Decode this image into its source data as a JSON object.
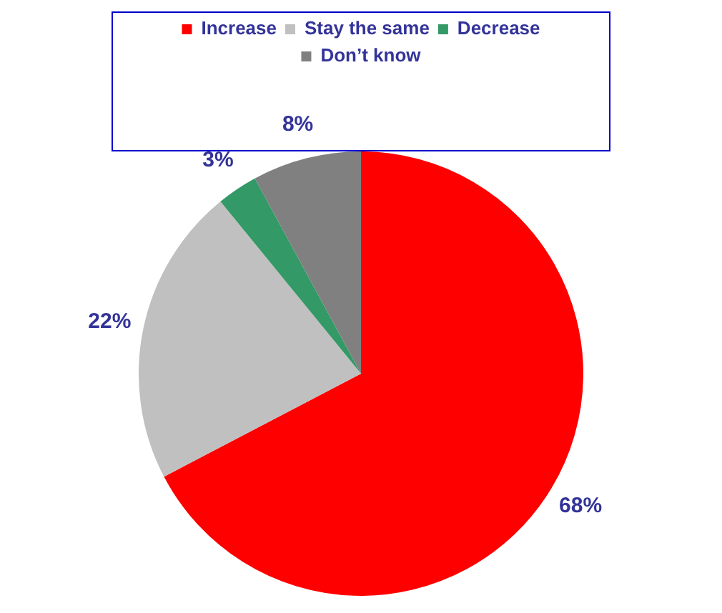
{
  "chart_data": {
    "type": "pie",
    "categories": [
      "Increase",
      "Stay the same",
      "Decrease",
      "Don’t know"
    ],
    "values": [
      68,
      22,
      3,
      8
    ],
    "colors": [
      "#ff0000",
      "#c0c0c0",
      "#339966",
      "#808080"
    ],
    "value_labels": [
      "68%",
      "22%",
      "3%",
      "8%"
    ],
    "legend": "top"
  }
}
